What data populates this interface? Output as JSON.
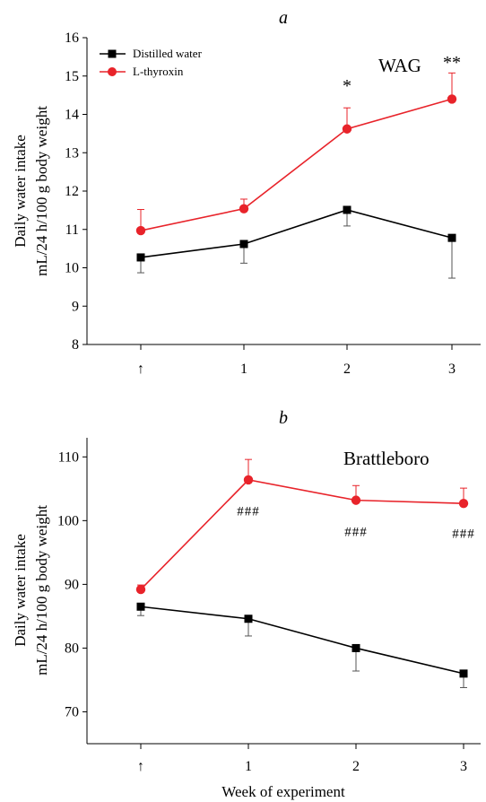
{
  "figure": {
    "xlabel": "Week of experiment"
  },
  "legend": [
    {
      "label": "Distilled water",
      "color": "#000000",
      "marker": "square"
    },
    {
      "label": "L-thyroxin",
      "color": "#e8232a",
      "marker": "circle"
    }
  ],
  "chart_data": [
    {
      "type": "line",
      "panel": "a",
      "strain": "WAG",
      "title": "",
      "xlabel": "",
      "ylabel": [
        "Daily water intake",
        "mL/24 h/100 g body weight"
      ],
      "categories": [
        "↑",
        "1",
        "2",
        "3"
      ],
      "ylim": [
        8,
        16
      ],
      "yticks": [
        "8",
        "9",
        "10",
        "11",
        "12",
        "13",
        "14",
        "15",
        "16"
      ],
      "legend_position": "top-left",
      "series": [
        {
          "name": "Distilled water",
          "color": "#000000",
          "marker": "square",
          "error_color": "#555555",
          "values": [
            10.27,
            10.62,
            11.51,
            10.78
          ],
          "errors": [
            0.4,
            0.5,
            0.42,
            1.05
          ]
        },
        {
          "name": "L-thyroxin",
          "color": "#e8232a",
          "marker": "circle",
          "error_color": "#e8232a",
          "values": [
            10.97,
            11.54,
            13.62,
            14.4
          ],
          "errors": [
            0.55,
            0.25,
            0.55,
            0.68
          ]
        }
      ],
      "annotations": [
        {
          "category": "2",
          "text": "*",
          "y": 14.6
        },
        {
          "category": "3",
          "text": "**",
          "y": 15.2
        }
      ]
    },
    {
      "type": "line",
      "panel": "b",
      "strain": "Brattleboro",
      "title": "",
      "xlabel": "Week of experiment",
      "ylabel": [
        "Daily water intake",
        "mL/24 h/100 g body weight"
      ],
      "categories": [
        "↑",
        "1",
        "2",
        "3"
      ],
      "ylim": [
        65,
        113
      ],
      "yticks": [
        "70",
        "80",
        "90",
        "100",
        "110"
      ],
      "series": [
        {
          "name": "Distilled water",
          "color": "#000000",
          "marker": "square",
          "error_color": "#555555",
          "values": [
            86.5,
            84.6,
            80.0,
            76.0
          ],
          "errors": [
            1.4,
            2.7,
            3.6,
            2.2
          ]
        },
        {
          "name": "L-thyroxin",
          "color": "#e8232a",
          "marker": "circle",
          "error_color": "#e8232a",
          "values": [
            89.2,
            106.4,
            103.2,
            102.7
          ],
          "errors": [
            0.7,
            3.2,
            2.3,
            2.4
          ]
        }
      ],
      "annotations": [
        {
          "category": "1",
          "text": "###",
          "y": 100.8
        },
        {
          "category": "2",
          "text": "###",
          "y": 97.6
        },
        {
          "category": "3",
          "text": "###",
          "y": 97.3
        }
      ]
    }
  ]
}
